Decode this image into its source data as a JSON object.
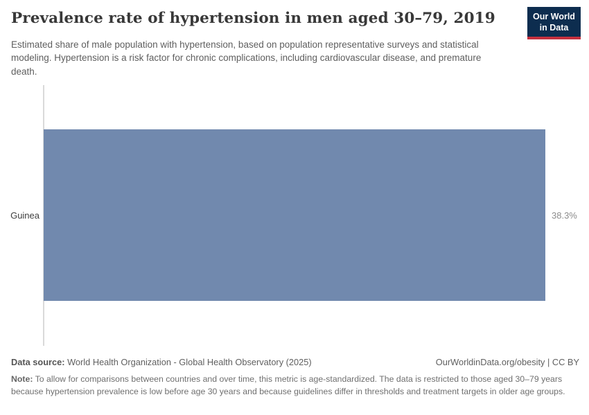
{
  "header": {
    "title": "Prevalence rate of hypertension in men aged 30–79, 2019",
    "subtitle": "Estimated share of male population with hypertension, based on population representative surveys and statistical modeling. Hypertension is a risk factor for chronic complications, including cardiovascular disease, and premature death."
  },
  "logo": {
    "line1": "Our World",
    "line2": "in Data",
    "bg_color": "#0d2d4f",
    "accent_color": "#c5303e"
  },
  "chart_data": {
    "type": "bar",
    "orientation": "horizontal",
    "title": "Prevalence rate of hypertension in men aged 30–79, 2019",
    "categories": [
      "Guinea"
    ],
    "values": [
      38.3
    ],
    "value_labels": [
      "38.3%"
    ],
    "unit": "%",
    "xmax": 38.3,
    "bar_color": "#7189ae",
    "grid": false,
    "legend": false
  },
  "footer": {
    "datasource_label": "Data source:",
    "datasource_text": " World Health Organization - Global Health Observatory (2025)",
    "license": "OurWorldinData.org/obesity | CC BY",
    "note_label": "Note:",
    "note_text": " To allow for comparisons between countries and over time, this metric is age-standardized. The data is restricted to those aged 30–79 years because hypertension prevalence is low before age 30 years and because guidelines differ in thresholds and treatment targets in older age groups."
  }
}
